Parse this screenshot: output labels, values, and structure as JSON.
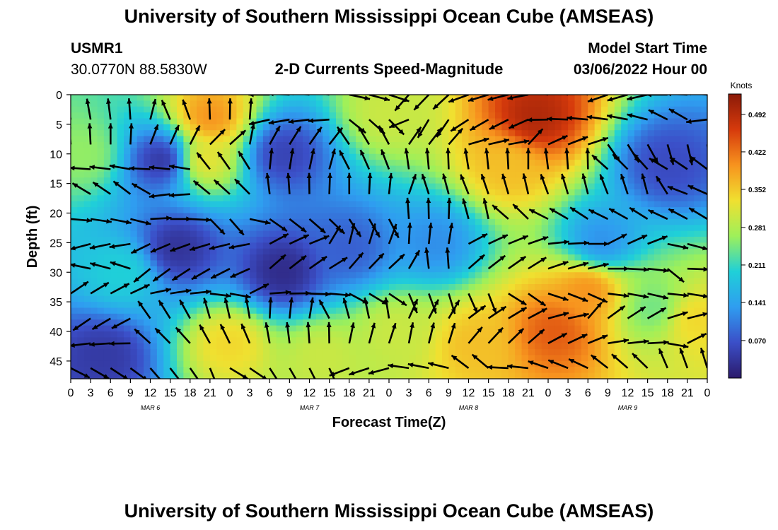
{
  "header": {
    "title": "University of Southern Mississippi Ocean Cube (AMSEAS)",
    "station": "USMR1",
    "coords": "30.0770N  88.5830W",
    "product": "2-D Currents Speed-Magnitude",
    "model_start_label": "Model Start Time",
    "model_start_value": "03/06/2022 Hour 00"
  },
  "footer": {
    "title": "University of Southern Mississippi Ocean Cube (AMSEAS)"
  },
  "colorbar": {
    "unit": "Knots",
    "ticks": [
      0.07,
      0.141,
      0.211,
      0.281,
      0.352,
      0.422,
      0.492
    ],
    "tick_labels": [
      "0.070",
      "0.141",
      "0.211",
      "0.281",
      "0.352",
      "0.422",
      "0.492"
    ],
    "range": [
      0.0,
      0.53
    ],
    "colors": [
      "#2b1a6b",
      "#3b4fc8",
      "#2f9df0",
      "#1fd0d8",
      "#9ef05a",
      "#f0e030",
      "#f7931e",
      "#d63a0c",
      "#8b1a08"
    ]
  },
  "chart_data": {
    "type": "heatmap",
    "title": "2-D Currents Speed-Magnitude",
    "xlabel": "Forecast Time(Z)",
    "ylabel": "Depth (ft)",
    "x_hours_range": [
      0,
      96
    ],
    "x_tick_step_hours": 3,
    "x_tick_labels": [
      "0",
      "3",
      "6",
      "9",
      "12",
      "15",
      "18",
      "21",
      "0",
      "3",
      "6",
      "9",
      "12",
      "15",
      "18",
      "21",
      "0",
      "3",
      "6",
      "9",
      "12",
      "15",
      "18",
      "21",
      "0",
      "3",
      "6",
      "9",
      "12",
      "15",
      "18",
      "21",
      "0"
    ],
    "date_labels": [
      {
        "label": "MAR 6",
        "hour": 12
      },
      {
        "label": "MAR 7",
        "hour": 36
      },
      {
        "label": "MAR 8",
        "hour": 60
      },
      {
        "label": "MAR 9",
        "hour": 84
      }
    ],
    "ylim": [
      0,
      48
    ],
    "y_ticks": [
      0,
      5,
      10,
      15,
      20,
      25,
      30,
      35,
      40,
      45
    ],
    "y_inverted": true,
    "speed_blobs_knots": [
      {
        "hour": 21,
        "depth": 4,
        "speed": 0.4
      },
      {
        "hour": 20,
        "depth": 11,
        "speed": 0.33
      },
      {
        "hour": 48,
        "depth": 3,
        "speed": 0.3
      },
      {
        "hour": 70,
        "depth": 4,
        "speed": 0.5
      },
      {
        "hour": 66,
        "depth": 12,
        "speed": 0.36
      },
      {
        "hour": 73,
        "depth": 40,
        "speed": 0.44
      },
      {
        "hour": 78,
        "depth": 33,
        "speed": 0.4
      },
      {
        "hour": 61,
        "depth": 42,
        "speed": 0.36
      },
      {
        "hour": 24,
        "depth": 42,
        "speed": 0.34
      },
      {
        "hour": 49,
        "depth": 40,
        "speed": 0.3
      },
      {
        "hour": 94,
        "depth": 38,
        "speed": 0.34
      },
      {
        "hour": 88,
        "depth": 36,
        "speed": 0.24
      },
      {
        "hour": 2,
        "depth": 10,
        "speed": 0.26
      },
      {
        "hour": 38,
        "depth": 44,
        "speed": 0.3
      },
      {
        "hour": 8,
        "depth": 30,
        "speed": 0.2
      },
      {
        "hour": 16,
        "depth": 26,
        "speed": 0.03
      },
      {
        "hour": 14,
        "depth": 11,
        "speed": 0.03
      },
      {
        "hour": 32,
        "depth": 30,
        "speed": 0.02
      },
      {
        "hour": 32,
        "depth": 10,
        "speed": 0.05
      },
      {
        "hour": 5,
        "depth": 44,
        "speed": 0.04
      },
      {
        "hour": 42,
        "depth": 26,
        "speed": 0.08
      },
      {
        "hour": 90,
        "depth": 12,
        "speed": 0.06
      },
      {
        "hour": 80,
        "depth": 25,
        "speed": 0.12
      },
      {
        "hour": 55,
        "depth": 25,
        "speed": 0.12
      }
    ],
    "vector_direction_deg": [
      [
        110,
        95,
        80,
        190,
        330,
        220,
        200,
        180,
        180,
        170
      ],
      [
        90,
        75,
        60,
        45,
        120,
        60,
        30,
        10,
        300,
        290
      ],
      [
        160,
        170,
        130,
        95,
        100,
        90,
        100,
        110,
        120,
        140
      ],
      [
        350,
        10,
        330,
        310,
        300,
        100,
        120,
        140,
        150,
        160
      ],
      [
        180,
        200,
        200,
        40,
        60,
        80,
        30,
        20,
        10,
        340
      ],
      [
        30,
        20,
        10,
        350,
        330,
        300,
        310,
        330,
        350,
        0
      ],
      [
        200,
        120,
        110,
        100,
        90,
        60,
        40,
        30,
        20,
        10
      ],
      [
        330,
        320,
        310,
        290,
        200,
        180,
        160,
        150,
        140,
        120
      ]
    ]
  }
}
